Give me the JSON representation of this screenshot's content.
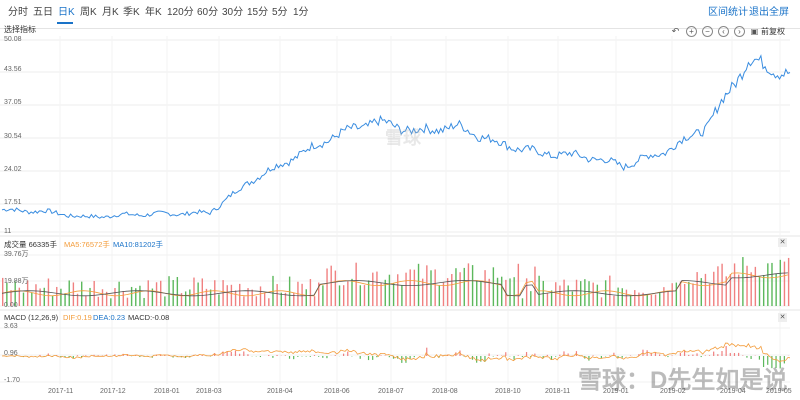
{
  "tabs": [
    {
      "label": "分时",
      "active": false
    },
    {
      "label": "五日",
      "active": false
    },
    {
      "label": "日K",
      "active": true
    },
    {
      "label": "周K",
      "active": false
    },
    {
      "label": "月K",
      "active": false
    },
    {
      "label": "季K",
      "active": false
    },
    {
      "label": "年K",
      "active": false
    },
    {
      "label": "120分",
      "active": false
    },
    {
      "label": "60分",
      "active": false
    },
    {
      "label": "30分",
      "active": false
    },
    {
      "label": "15分",
      "active": false
    },
    {
      "label": "5分",
      "active": false
    },
    {
      "label": "1分",
      "active": false
    }
  ],
  "top_right": {
    "range_stats": "区间统计",
    "exit_fullscreen": "退出全屏"
  },
  "indicator_select": "选择指标",
  "restore_label": "前复权",
  "volume_panel": {
    "title": "成交量 66335手",
    "ma5": "MA5:76572手",
    "ma10": "MA10:81202手",
    "y_ticks": [
      "39.76万",
      "19.88万",
      "0.00"
    ]
  },
  "macd_panel": {
    "title": "MACD (12,26,9)",
    "dif": "DIF:0.19",
    "dea": "DEA:0.23",
    "macd": "MACD:-0.08",
    "y_ticks": [
      "3.63",
      "0.96",
      "-1.70"
    ]
  },
  "watermark": {
    "logo_text": "雪球",
    "bottom_text": "雪球：D先生如是说"
  },
  "colors": {
    "accent": "#1a73c8",
    "up": "#f08080",
    "down": "#5cb85c",
    "ma5": "#f39c3b",
    "line": "#3a8de0"
  },
  "chart_data": {
    "type": "line",
    "y_ticks": [
      50.08,
      43.56,
      37.05,
      30.54,
      24.02,
      17.51,
      11.0
    ],
    "ylim": [
      11.0,
      50.08
    ],
    "x_ticks": [
      "2017-11",
      "2017-12",
      "2018-01",
      "2018-03",
      "2018-04",
      "2018-06",
      "2018-07",
      "2018-08",
      "2018-10",
      "2018-11",
      "2019-01",
      "2019-02",
      "2019-04",
      "2019-05"
    ],
    "series": [
      {
        "x": [
          "2017-10",
          "2017-11",
          "2017-12",
          "2018-01",
          "2018-02",
          "2018-03",
          "2018-04",
          "2018-05",
          "2018-06",
          "2018-07",
          "2018-08",
          "2018-09",
          "2018-10",
          "2018-11",
          "2018-12",
          "2019-01",
          "2019-02",
          "2019-03",
          "2019-04",
          "2019-05"
        ],
        "values": [
          15.5,
          15.2,
          14.0,
          14.5,
          14.7,
          14.9,
          21.5,
          26.0,
          30.5,
          33.5,
          31.5,
          32.5,
          29.0,
          27.0,
          26.5,
          24.5,
          27.5,
          32.5,
          46.0,
          43.0
        ]
      }
    ]
  }
}
